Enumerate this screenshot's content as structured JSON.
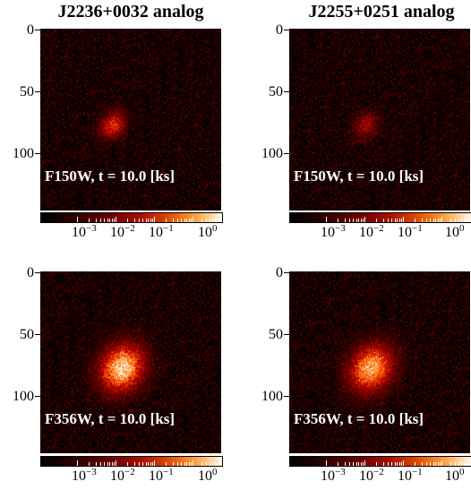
{
  "columns": [
    {
      "title": "J2236+0032 analog"
    },
    {
      "title": "J2255+0251 analog"
    }
  ],
  "panels": [
    {
      "label": "F150W, t = 10.0 [ks]",
      "source": "compact",
      "brightness": 0.55,
      "source_pos": [
        0.4,
        0.53
      ]
    },
    {
      "label": "F150W, t = 10.0 [ks]",
      "source": "compact",
      "brightness": 0.35,
      "source_pos": [
        0.42,
        0.53
      ]
    },
    {
      "label": "F356W, t = 10.0 [ks]",
      "source": "extended",
      "brightness": 0.95,
      "source_pos": [
        0.45,
        0.53
      ]
    },
    {
      "label": "F356W, t = 10.0 [ks]",
      "source": "extended",
      "brightness": 0.85,
      "source_pos": [
        0.45,
        0.53
      ]
    }
  ],
  "y_ticks": [
    "0",
    "50",
    "100"
  ],
  "colorbar_ticks": [
    {
      "base": "10",
      "exp": "−3"
    },
    {
      "base": "10",
      "exp": "−2"
    },
    {
      "base": "10",
      "exp": "−1"
    },
    {
      "base": "10",
      "exp": "0"
    }
  ],
  "colormap": "gist_heat"
}
